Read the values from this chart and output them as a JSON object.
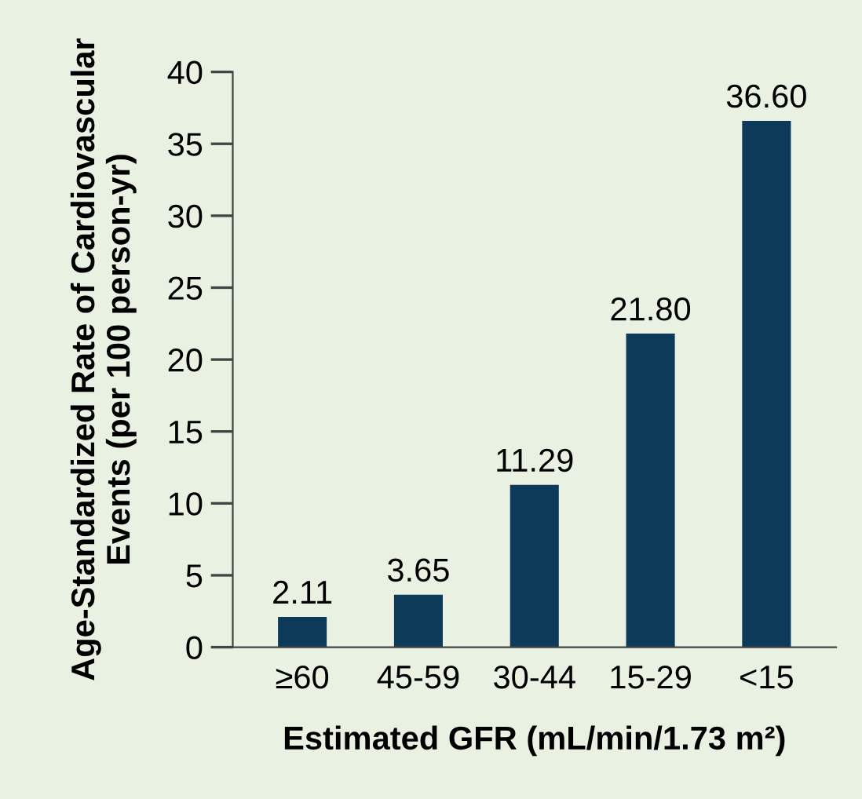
{
  "chart_data": {
    "type": "bar",
    "xlabel": "Estimated GFR (mL/min/1.73 m²)",
    "ylabel": "Age-Standardized Rate of Cardiovascular\nEvents (per 100 person-yr)",
    "categories": [
      "≥60",
      "45-59",
      "30-44",
      "15-29",
      "<15"
    ],
    "values": [
      2.11,
      3.65,
      11.29,
      21.8,
      36.6
    ],
    "value_labels": [
      "2.11",
      "3.65",
      "11.29",
      "21.80",
      "36.60"
    ],
    "color": "#0e3a5a",
    "ylim": [
      0,
      40
    ],
    "yticks": [
      0,
      5,
      10,
      15,
      20,
      25,
      30,
      35,
      40
    ],
    "grid": false,
    "legend": false
  }
}
